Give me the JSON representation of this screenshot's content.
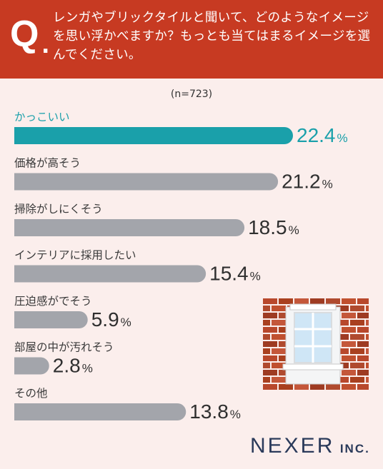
{
  "header": {
    "q_letter": "Q",
    "q_dot": ".",
    "question": "レンガやブリックタイルと聞いて、どのようなイメージを思い浮かべますか？もっとも当てはまるイメージを選んでください。"
  },
  "sample": "(n=723)",
  "colors": {
    "header": "#c73a22",
    "highlight": "#1aa0aa",
    "bar": "#a3a5ab",
    "background": "#fbeeec"
  },
  "chart_data": {
    "type": "bar",
    "orientation": "horizontal",
    "unit": "%",
    "categories": [
      "かっこいい",
      "価格が高そう",
      "掃除がしにくそう",
      "インテリアに採用したい",
      "圧迫感がでそう",
      "部屋の中が汚れそう",
      "その他"
    ],
    "values": [
      22.4,
      21.2,
      18.5,
      15.4,
      5.9,
      2.8,
      13.8
    ],
    "value_labels": [
      "22.4",
      "21.2",
      "18.5",
      "15.4",
      "5.9",
      "2.8",
      "13.8"
    ],
    "highlight_index": 0,
    "xlim": [
      0,
      22.4
    ],
    "grid": false,
    "legend": "none"
  },
  "brand": {
    "name": "NEXER",
    "suffix": "INC."
  }
}
